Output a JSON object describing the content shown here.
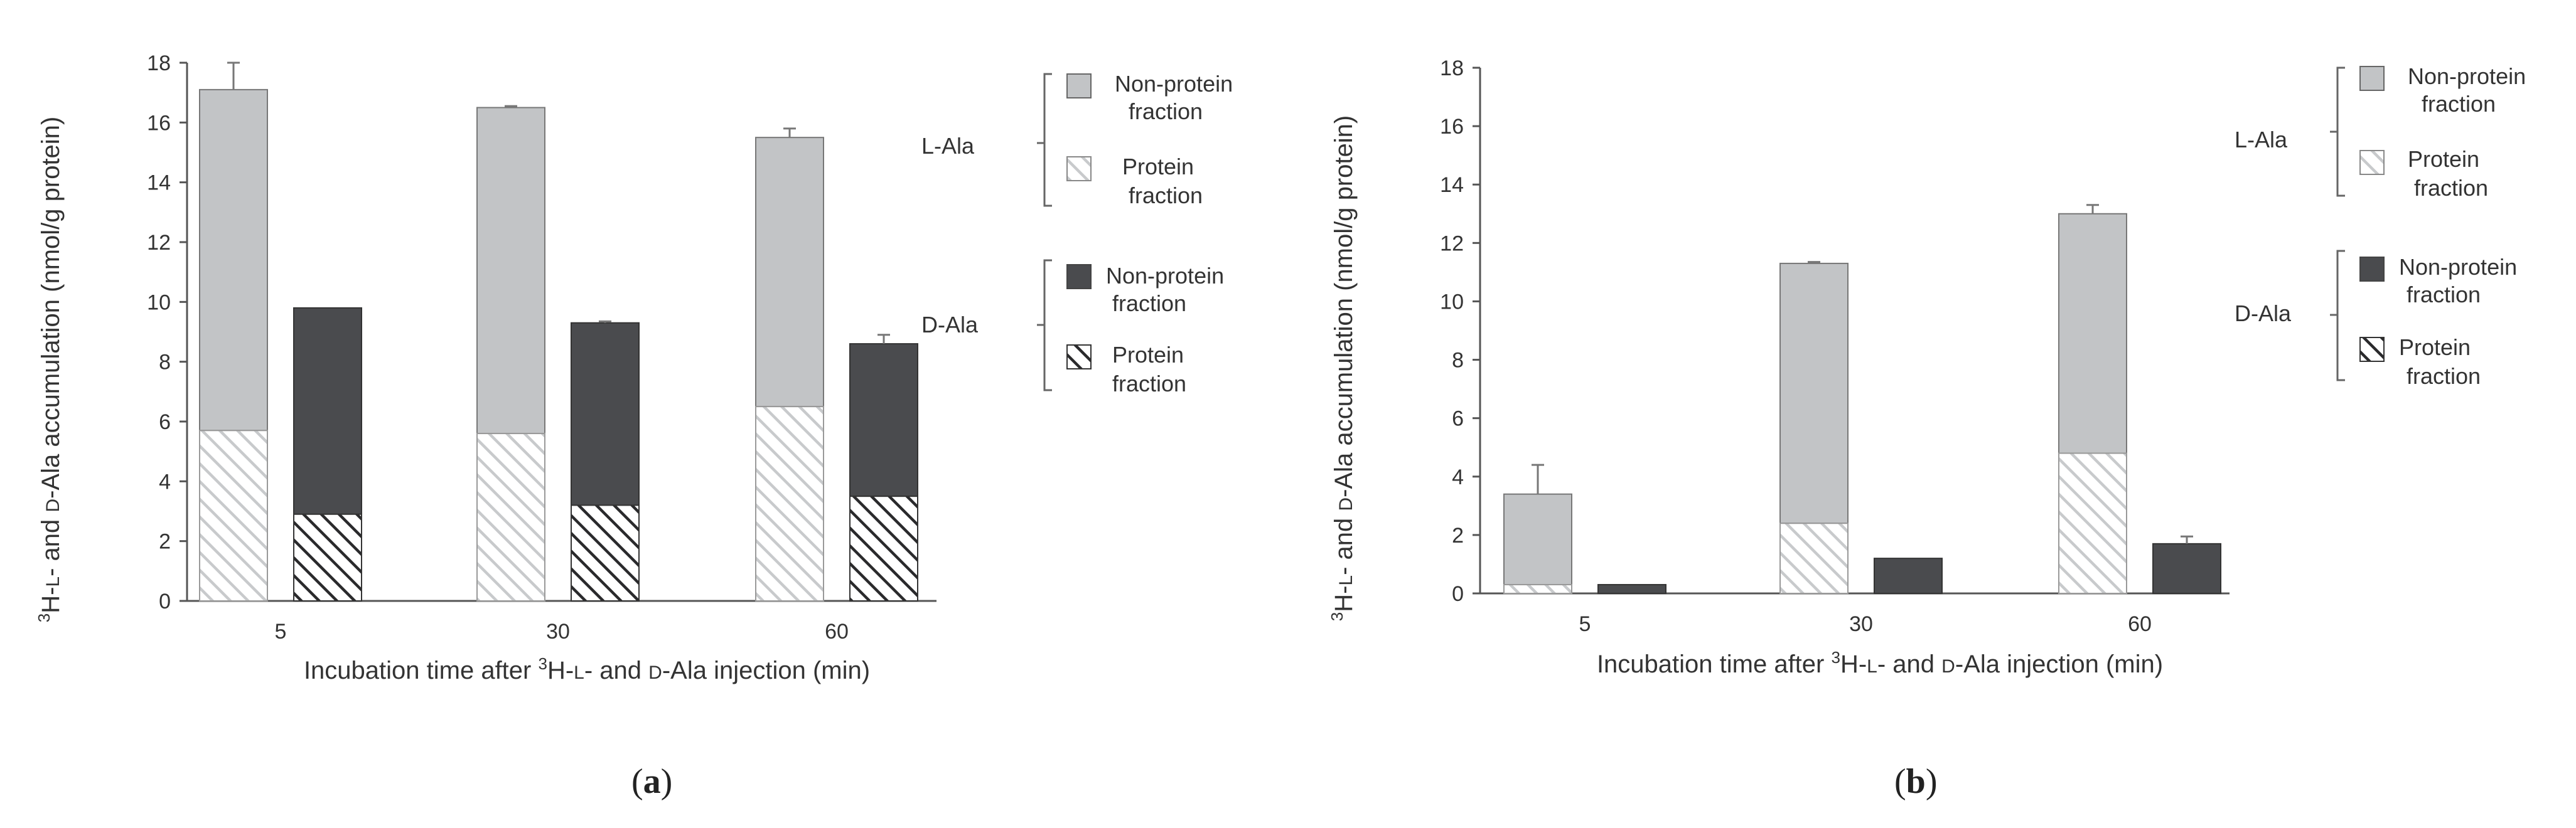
{
  "colors": {
    "l_nonprotein": "#c2c4c6",
    "d_nonprotein": "#4a4b4e",
    "l_protein_hatch": "#d0d2d4",
    "d_protein_hatch": "#2a2a2c",
    "axis": "#555555",
    "errorbar": "#777777"
  },
  "legend_labels": {
    "l_ala": "L-Ala",
    "d_ala": "D-Ala",
    "nonprotein_1": "Non-protein",
    "nonprotein_2": "fraction",
    "protein_1": "Protein",
    "protein_2": "fraction"
  },
  "ylabel_parts": [
    "3",
    "H-",
    "L",
    "- and ",
    "D",
    "-Ala accumulation (nmol/g protein)"
  ],
  "xlabel_parts": [
    "Incubation time after ",
    "3",
    "H-",
    "L",
    "- and ",
    "D",
    "-Ala injection (min)"
  ],
  "chart_data": [
    {
      "type": "bar",
      "panel_label": "a",
      "categories": [
        "5",
        "30",
        "60"
      ],
      "ylim": [
        0,
        18
      ],
      "yticks": [
        0,
        2,
        4,
        6,
        8,
        10,
        12,
        14,
        16,
        18
      ],
      "xlabel": "Incubation time after 3H-L- and D-Ala injection (min)",
      "ylabel": "3H-L- and D-Ala accumulation (nmol/g protein)",
      "series": [
        {
          "name": "L-Ala",
          "protein": [
            5.7,
            5.6,
            6.5
          ],
          "total": [
            17.1,
            16.5,
            15.5
          ],
          "error": [
            0.9,
            0.05,
            0.3
          ]
        },
        {
          "name": "D-Ala",
          "protein": [
            2.9,
            3.2,
            3.5
          ],
          "total": [
            9.8,
            9.3,
            8.6
          ],
          "error": [
            0,
            0.05,
            0.3
          ]
        }
      ]
    },
    {
      "type": "bar",
      "panel_label": "b",
      "categories": [
        "5",
        "30",
        "60"
      ],
      "ylim": [
        0,
        18
      ],
      "yticks": [
        0,
        2,
        4,
        6,
        8,
        10,
        12,
        14,
        16,
        18
      ],
      "xlabel": "Incubation time after 3H-L- and D-Ala injection (min)",
      "ylabel": "3H-L- and D-Ala accumulation (nmol/g protein)",
      "series": [
        {
          "name": "L-Ala",
          "protein": [
            0.3,
            2.4,
            4.8
          ],
          "total": [
            3.4,
            11.3,
            13.0
          ],
          "error": [
            1.0,
            0.05,
            0.3
          ]
        },
        {
          "name": "D-Ala",
          "protein": [
            0.0,
            0.0,
            0.0
          ],
          "total": [
            0.3,
            1.2,
            1.7
          ],
          "error": [
            0,
            0,
            0.25
          ]
        }
      ]
    }
  ]
}
